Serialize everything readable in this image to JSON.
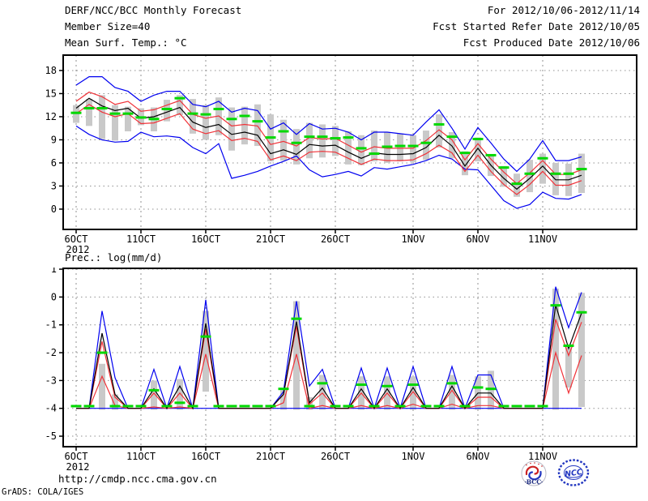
{
  "header": {
    "title": "DERF/NCC/BCC Monthly Forecast",
    "member_size": "Member Size=40",
    "for_range": "For 2012/10/06-2012/11/14",
    "fcst_started": "Fcst Started Refer Date 2012/10/05",
    "fcst_produced": "Fcst Produced Date 2012/10/06"
  },
  "footer": {
    "url": "http://cmdp.ncc.cma.gov.cn",
    "grads_credit": "GrADS: COLA/IGES",
    "bcc_logo_text": "BCC",
    "ncc_logo_text": "NCC"
  },
  "colors": {
    "line_blue": "#0000f0",
    "line_red": "#f03238",
    "line_black": "#000000",
    "climo_green": "#00d800",
    "bar_gray": "#c9c9c9",
    "grid_gray": "#909090",
    "logo_blue": "#2236c0",
    "logo_red": "#cc2222"
  },
  "chart_data": [
    {
      "type": "line",
      "title": "Mean Surf. Temp.: °C",
      "x_year_label": "2012",
      "x_tick_labels": [
        "6OCT",
        "11OCT",
        "16OCT",
        "21OCT",
        "26OCT",
        "1NOV",
        "6NOV",
        "11NOV"
      ],
      "x_tick_day_index": [
        0,
        5,
        10,
        15,
        20,
        26,
        31,
        36
      ],
      "x_start_date": "2012/10/06",
      "x_end_date": "2012/11/14",
      "y_ticks": [
        18,
        15,
        12,
        9,
        6,
        3,
        0
      ],
      "ylim": [
        -2.6,
        20.1
      ],
      "grid": true,
      "legend_position": "none",
      "series": [
        {
          "name": "ensemble-max",
          "color": "#0000f0",
          "values": [
            16.1,
            17.2,
            17.2,
            15.8,
            15.3,
            14.0,
            14.8,
            15.3,
            15.3,
            13.6,
            13.3,
            14.0,
            12.6,
            13.1,
            12.8,
            10.4,
            11.2,
            9.7,
            11.1,
            10.4,
            10.5,
            10.0,
            9.0,
            10.0,
            10.0,
            9.8,
            9.6,
            11.3,
            12.9,
            10.5,
            7.8,
            10.6,
            8.6,
            6.5,
            4.9,
            6.5,
            8.9,
            6.3,
            6.3,
            6.8
          ]
        },
        {
          "name": "ensemble-min",
          "color": "#0000f0",
          "values": [
            10.8,
            9.7,
            9.0,
            8.7,
            8.8,
            10.0,
            9.4,
            9.5,
            9.3,
            8.0,
            7.2,
            8.5,
            4.0,
            4.4,
            4.9,
            5.6,
            6.2,
            6.9,
            5.1,
            4.2,
            4.5,
            4.9,
            4.3,
            5.4,
            5.2,
            5.5,
            5.8,
            6.3,
            7.0,
            6.5,
            5.2,
            5.1,
            3.1,
            1.1,
            0.1,
            0.6,
            2.2,
            1.4,
            1.3,
            1.9
          ]
        },
        {
          "name": "spread-upper",
          "color": "#f03238",
          "values": [
            14.0,
            15.2,
            14.6,
            13.6,
            14.0,
            12.7,
            12.9,
            13.5,
            14.1,
            12.3,
            11.8,
            12.1,
            10.8,
            11.0,
            10.8,
            8.4,
            8.8,
            8.2,
            9.3,
            9.1,
            9.2,
            8.3,
            7.4,
            8.1,
            7.9,
            7.9,
            7.9,
            8.9,
            10.3,
            9.0,
            6.4,
            8.5,
            6.5,
            4.8,
            3.3,
            4.7,
            6.3,
            4.5,
            4.5,
            5.1
          ]
        },
        {
          "name": "spread-lower",
          "color": "#f03238",
          "values": [
            12.4,
            13.6,
            12.6,
            12.0,
            12.4,
            11.1,
            11.2,
            11.8,
            12.4,
            10.4,
            9.8,
            10.2,
            8.9,
            9.2,
            8.8,
            6.4,
            6.9,
            6.3,
            7.4,
            7.5,
            7.4,
            6.6,
            5.8,
            6.5,
            6.3,
            6.3,
            6.4,
            7.2,
            8.3,
            7.3,
            4.9,
            7.0,
            4.9,
            3.2,
            1.9,
            3.2,
            4.9,
            3.1,
            3.1,
            3.7
          ]
        },
        {
          "name": "ensemble-mean",
          "color": "#000000",
          "values": [
            13.1,
            14.4,
            13.4,
            12.8,
            13.1,
            11.8,
            12.0,
            12.6,
            13.2,
            11.3,
            10.6,
            11.0,
            9.7,
            10.0,
            9.6,
            7.2,
            7.7,
            7.1,
            8.4,
            8.2,
            8.3,
            7.4,
            6.6,
            7.3,
            7.1,
            7.1,
            7.2,
            8.0,
            9.6,
            8.2,
            5.6,
            7.9,
            5.7,
            4.0,
            2.6,
            4.0,
            5.6,
            3.8,
            3.8,
            4.4
          ]
        },
        {
          "name": "climatology-dashes",
          "color": "#00d800",
          "style": "dash-marker",
          "values": [
            12.5,
            13.1,
            13.1,
            12.4,
            12.4,
            11.9,
            11.7,
            13.0,
            14.4,
            12.4,
            12.3,
            13.0,
            11.7,
            12.1,
            11.4,
            9.3,
            10.1,
            8.6,
            9.4,
            9.4,
            9.2,
            9.3,
            7.9,
            7.2,
            8.1,
            8.2,
            8.2,
            8.6,
            11.0,
            9.4,
            7.3,
            9.1,
            7.0,
            5.4,
            3.3,
            4.6,
            6.6,
            4.6,
            4.6,
            5.2
          ]
        }
      ],
      "bars": {
        "name": "ensemble-spread-bar",
        "color": "#c9c9c9",
        "top": [
          13.5,
          14.3,
          14.8,
          13.5,
          13.3,
          13.1,
          13.2,
          14.2,
          14.8,
          14.3,
          13.5,
          14.5,
          13.2,
          13.3,
          13.6,
          12.3,
          11.6,
          10.4,
          11.2,
          11.0,
          10.8,
          10.1,
          9.6,
          10.2,
          10.0,
          9.8,
          9.6,
          10.2,
          12.3,
          10.0,
          7.5,
          9.3,
          7.0,
          5.6,
          4.6,
          6.4,
          7.2,
          6.0,
          5.9,
          7.2
        ],
        "bottom": [
          11.2,
          10.8,
          9.1,
          8.9,
          10.1,
          10.9,
          10.1,
          11.4,
          12.2,
          9.8,
          9.0,
          9.6,
          7.6,
          8.4,
          8.2,
          6.2,
          6.3,
          5.8,
          6.6,
          6.7,
          6.9,
          5.8,
          5.7,
          6.2,
          6.0,
          6.2,
          6.1,
          6.4,
          8.0,
          6.6,
          4.4,
          6.2,
          4.3,
          2.9,
          1.6,
          2.2,
          3.3,
          1.8,
          1.7,
          2.1
        ]
      }
    },
    {
      "type": "line",
      "title": "Prec.: log(mm/d)",
      "x_year_label": "2012",
      "x_tick_labels": [
        "6OCT",
        "11OCT",
        "16OCT",
        "21OCT",
        "26OCT",
        "1NOV",
        "6NOV",
        "11NOV"
      ],
      "x_tick_day_index": [
        0,
        5,
        10,
        15,
        20,
        26,
        31,
        36
      ],
      "x_start_date": "2012/10/06",
      "x_end_date": "2012/11/14",
      "y_ticks": [
        1,
        0,
        -1,
        -2,
        -3,
        -4,
        -5
      ],
      "ylim": [
        -5.38,
        1.06
      ],
      "grid": true,
      "legend_position": "none",
      "series": [
        {
          "name": "ensemble-max",
          "color": "#0000f0",
          "values": [
            -4,
            -4,
            -0.5,
            -2.9,
            -4,
            -4,
            -2.6,
            -4,
            -2.5,
            -4,
            -0.1,
            -4,
            -4,
            -4,
            -4,
            -4,
            -3.4,
            -0.15,
            -3.2,
            -2.6,
            -4,
            -4,
            -2.55,
            -4,
            -2.55,
            -4,
            -2.5,
            -4,
            -4,
            -2.5,
            -4,
            -2.8,
            -2.8,
            -4,
            -4,
            -4,
            -4,
            0.37,
            -1.1,
            0.17
          ]
        },
        {
          "name": "ensemble-min",
          "color": "#0000f0",
          "values": [
            -4,
            -4,
            -4,
            -4,
            -4,
            -4,
            -4,
            -4,
            -4,
            -4,
            -4,
            -4,
            -4,
            -4,
            -4,
            -4,
            -4,
            -4,
            -4,
            -4,
            -4,
            -4,
            -4,
            -4,
            -4,
            -4,
            -4,
            -4,
            -4,
            -4,
            -4,
            -4,
            -4,
            -4,
            -4,
            -4,
            -4,
            -4,
            -4,
            -4
          ]
        },
        {
          "name": "spread-upper",
          "color": "#f03238",
          "values": [
            -4,
            -4,
            -1.6,
            -3.6,
            -4,
            -4,
            -3.45,
            -4,
            -3.45,
            -4,
            -1.15,
            -4,
            -4,
            -4,
            -4,
            -4,
            -3.5,
            -1.05,
            -3.85,
            -3.45,
            -4,
            -4,
            -3.45,
            -4,
            -3.45,
            -4,
            -3.4,
            -4,
            -4,
            -3.35,
            -4,
            -3.6,
            -3.6,
            -4,
            -4,
            -4,
            -4,
            -0.8,
            -2.1,
            -0.9
          ]
        },
        {
          "name": "spread-lower",
          "color": "#f03238",
          "values": [
            -4,
            -4,
            -2.85,
            -3.9,
            -4,
            -4,
            -3.95,
            -4,
            -3.95,
            -4,
            -2.05,
            -4,
            -4,
            -4,
            -4,
            -4,
            -3.8,
            -2.05,
            -4,
            -3.9,
            -4,
            -4,
            -3.9,
            -4,
            -3.9,
            -4,
            -3.85,
            -4,
            -4,
            -3.85,
            -4,
            -3.9,
            -3.9,
            -4,
            -4,
            -4,
            -4,
            -2.0,
            -3.45,
            -2.1
          ]
        },
        {
          "name": "ensemble-mean",
          "color": "#000000",
          "values": [
            -4,
            -4,
            -1.3,
            -3.5,
            -4,
            -4,
            -3.3,
            -4,
            -3.2,
            -4,
            -0.95,
            -4,
            -4,
            -4,
            -4,
            -4,
            -3.5,
            -0.88,
            -3.8,
            -3.27,
            -4,
            -4,
            -3.3,
            -4,
            -3.3,
            -4,
            -3.25,
            -4,
            -4,
            -3.2,
            -4,
            -3.45,
            -3.45,
            -4,
            -4,
            -4,
            -4,
            -0.28,
            -1.85,
            -0.57
          ]
        },
        {
          "name": "climatology-dashes",
          "color": "#00d800",
          "style": "dash-marker",
          "values": [
            -3.92,
            -3.92,
            -2.0,
            -3.92,
            -3.92,
            -3.92,
            -3.35,
            -3.92,
            -3.8,
            -3.92,
            -1.42,
            -3.92,
            -3.92,
            -3.92,
            -3.92,
            -3.92,
            -3.3,
            -0.78,
            -3.92,
            -3.1,
            -3.92,
            -3.92,
            -3.15,
            -3.92,
            -3.2,
            -3.92,
            -3.15,
            -3.92,
            -3.92,
            -3.1,
            -3.92,
            -3.25,
            -3.3,
            -3.92,
            -3.92,
            -3.92,
            -3.92,
            -0.3,
            -1.75,
            -0.55
          ]
        }
      ],
      "bars": {
        "name": "ensemble-spread-bar",
        "color": "#c9c9c9",
        "top": [
          null,
          null,
          -2.4,
          -3.5,
          null,
          null,
          -3.0,
          null,
          -2.95,
          null,
          -0.5,
          null,
          null,
          null,
          null,
          null,
          -3.35,
          -0.15,
          -3.6,
          -2.8,
          null,
          null,
          -2.85,
          null,
          -2.85,
          null,
          -2.85,
          null,
          null,
          -2.8,
          null,
          -2.85,
          -2.65,
          null,
          null,
          null,
          null,
          0.3,
          -1.75,
          0.15
        ],
        "bottom": [
          null,
          null,
          -4.05,
          -4.05,
          null,
          null,
          -4.05,
          null,
          -4.05,
          null,
          -3.4,
          null,
          null,
          null,
          null,
          null,
          -4.05,
          -4.05,
          -4.05,
          -4.05,
          null,
          null,
          -4.05,
          null,
          -4.05,
          null,
          -4.05,
          null,
          null,
          -4.05,
          null,
          -4.05,
          -4.05,
          null,
          null,
          null,
          null,
          -4.05,
          -3.25,
          -3.95
        ]
      }
    }
  ]
}
